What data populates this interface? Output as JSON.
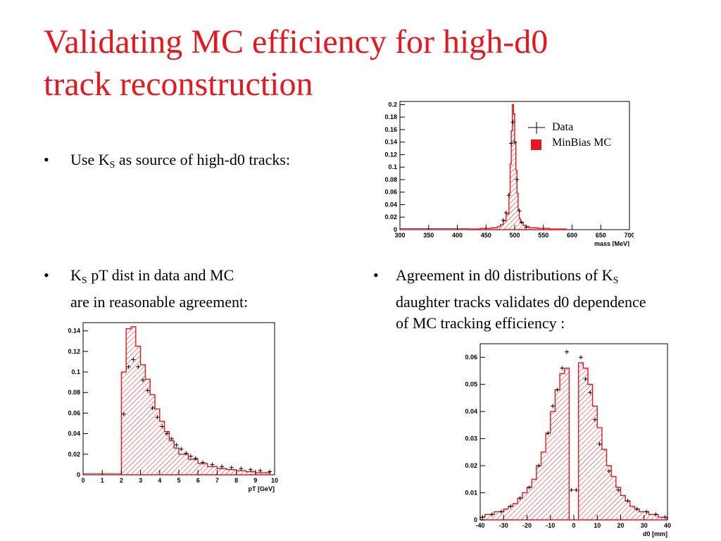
{
  "slide": {
    "title_line1": "Validating MC efficiency for high-d0",
    "title_line2": "track reconstruction",
    "bullet_char": "•",
    "bullet1": {
      "pre": "Use K",
      "sub": "S",
      "post": " as source of high-d0 tracks:"
    },
    "bullet2": {
      "line1_pre": "K",
      "line1_sub": "S",
      "line1_post": " pT dist in data and MC",
      "line2": "are in reasonable agreement:"
    },
    "bullet3": {
      "line1_pre": "Agreement in d0 distributions of K",
      "line1_sub": "S",
      "line2": "daughter tracks validates d0 dependence",
      "line3": "of MC tracking efficiency :"
    }
  },
  "colors": {
    "mc": "#e8161d",
    "data": "#000000",
    "title": "#e8161d"
  },
  "chart_data": [
    {
      "type": "bar",
      "id": "mass",
      "xlabel": "mass [MeV]",
      "xlim": [
        300,
        700
      ],
      "ylim": [
        0,
        0.205
      ],
      "xticks": [
        300,
        350,
        400,
        450,
        500,
        550,
        600,
        650,
        700
      ],
      "xtick_labels": [
        "300",
        "350",
        "400",
        "450",
        "500",
        "550",
        "600",
        "650",
        "700"
      ],
      "yticks": [
        0,
        0.02,
        0.04,
        0.06,
        0.08,
        0.1,
        0.12,
        0.14,
        0.16,
        0.18,
        0.2
      ],
      "ytick_labels": [
        "0",
        "0.02",
        "0.04",
        "0.06",
        "0.08",
        "0.1",
        "0.12",
        "0.14",
        "0.16",
        "0.18",
        "0.2"
      ],
      "legend": {
        "position": "top-right",
        "entries": [
          "Data",
          "MinBias MC"
        ]
      },
      "series": [
        {
          "name": "MinBias MC",
          "style": "hist",
          "x": [
            420,
            430,
            440,
            450,
            460,
            470,
            475,
            480,
            485,
            490,
            492,
            494,
            496,
            498,
            500,
            502,
            504,
            506,
            508,
            510,
            515,
            520,
            525,
            530,
            540,
            550,
            560,
            570,
            580
          ],
          "values": [
            0.001,
            0.001,
            0.002,
            0.002,
            0.003,
            0.005,
            0.008,
            0.014,
            0.025,
            0.058,
            0.105,
            0.158,
            0.2,
            0.185,
            0.14,
            0.095,
            0.058,
            0.032,
            0.018,
            0.011,
            0.007,
            0.005,
            0.003,
            0.003,
            0.002,
            0.002,
            0.001,
            0.001,
            0.001
          ]
        },
        {
          "name": "Data",
          "style": "points",
          "x": [
            480,
            485,
            490,
            494,
            497,
            500,
            504,
            508,
            512,
            520
          ],
          "values": [
            0.015,
            0.027,
            0.055,
            0.138,
            0.172,
            0.14,
            0.08,
            0.03,
            0.012,
            0.004
          ]
        }
      ]
    },
    {
      "type": "bar",
      "id": "pt",
      "xlabel": "pT [GeV]",
      "xlim": [
        0,
        10
      ],
      "ylim": [
        0,
        0.148
      ],
      "xticks": [
        0,
        1,
        2,
        3,
        4,
        5,
        6,
        7,
        8,
        9,
        10
      ],
      "xtick_labels": [
        "0",
        "1",
        "2",
        "3",
        "4",
        "5",
        "6",
        "7",
        "8",
        "9",
        "10"
      ],
      "yticks": [
        0,
        0.02,
        0.04,
        0.06,
        0.08,
        0.1,
        0.12,
        0.14
      ],
      "ytick_labels": [
        "0",
        "0.02",
        "0.04",
        "0.06",
        "0.08",
        "0.1",
        "0.12",
        "0.14"
      ],
      "series": [
        {
          "name": "MinBias MC",
          "style": "hist",
          "x": [
            2.0,
            2.25,
            2.5,
            2.75,
            3.0,
            3.25,
            3.5,
            3.75,
            4.0,
            4.25,
            4.5,
            4.75,
            5.0,
            5.5,
            6.0,
            6.5,
            7.0,
            7.5,
            8.0,
            8.5,
            9.0,
            9.5
          ],
          "values": [
            0.1,
            0.142,
            0.144,
            0.125,
            0.107,
            0.093,
            0.078,
            0.064,
            0.052,
            0.042,
            0.033,
            0.026,
            0.02,
            0.015,
            0.011,
            0.008,
            0.006,
            0.005,
            0.004,
            0.003,
            0.002,
            0.002
          ]
        },
        {
          "name": "Data",
          "style": "points",
          "x": [
            2.125,
            2.375,
            2.625,
            2.875,
            3.125,
            3.375,
            3.625,
            3.875,
            4.125,
            4.375,
            4.625,
            4.875,
            5.125,
            5.375,
            5.625,
            5.875,
            6.25,
            6.75,
            7.25,
            7.75,
            8.25,
            8.75,
            9.25,
            9.75
          ],
          "values": [
            0.059,
            0.105,
            0.112,
            0.105,
            0.092,
            0.082,
            0.065,
            0.056,
            0.047,
            0.04,
            0.035,
            0.029,
            0.025,
            0.021,
            0.018,
            0.016,
            0.012,
            0.01,
            0.008,
            0.007,
            0.006,
            0.005,
            0.004,
            0.003
          ]
        }
      ]
    },
    {
      "type": "bar",
      "id": "d0",
      "xlabel": "d0 [mm]",
      "xlim": [
        -40,
        40
      ],
      "ylim": [
        0,
        0.065
      ],
      "xticks": [
        -40,
        -30,
        -20,
        -10,
        0,
        10,
        20,
        30,
        40
      ],
      "xtick_labels": [
        "-40",
        "-30",
        "-20",
        "-10",
        "0",
        "10",
        "20",
        "30",
        "40"
      ],
      "yticks": [
        0,
        0.01,
        0.02,
        0.03,
        0.04,
        0.05,
        0.06
      ],
      "ytick_labels": [
        "0",
        "0.01",
        "0.02",
        "0.03",
        "0.04",
        "0.05",
        "0.06"
      ],
      "series": [
        {
          "name": "MinBias MC",
          "style": "hist",
          "x": [
            -40,
            -38,
            -36,
            -34,
            -32,
            -30,
            -28,
            -26,
            -24,
            -22,
            -20,
            -18,
            -16,
            -14,
            -12,
            -10,
            -8,
            -6,
            -4,
            -2,
            0,
            2,
            4,
            6,
            8,
            10,
            12,
            14,
            16,
            18,
            20,
            22,
            24,
            26,
            28,
            30,
            32,
            34,
            36,
            38
          ],
          "values": [
            0.001,
            0.002,
            0.002,
            0.003,
            0.003,
            0.004,
            0.005,
            0.006,
            0.008,
            0.01,
            0.012,
            0.015,
            0.02,
            0.025,
            0.032,
            0.04,
            0.048,
            0.054,
            0.056,
            0.0,
            0.0,
            0.058,
            0.056,
            0.05,
            0.042,
            0.034,
            0.026,
            0.02,
            0.016,
            0.012,
            0.009,
            0.007,
            0.005,
            0.004,
            0.003,
            0.003,
            0.002,
            0.002,
            0.001,
            0.001
          ]
        },
        {
          "name": "Data",
          "style": "points",
          "x": [
            -39,
            -35,
            -31,
            -27,
            -23,
            -19,
            -15,
            -11,
            -9,
            -7,
            -5,
            -3,
            -1,
            1,
            3,
            5,
            7,
            9,
            11,
            15,
            19,
            23,
            27,
            31,
            35,
            39
          ],
          "values": [
            0.001,
            0.002,
            0.003,
            0.005,
            0.008,
            0.012,
            0.02,
            0.032,
            0.042,
            0.048,
            0.056,
            0.062,
            0.011,
            0.011,
            0.06,
            0.052,
            0.047,
            0.037,
            0.028,
            0.018,
            0.011,
            0.007,
            0.004,
            0.003,
            0.002,
            0.001
          ]
        }
      ]
    }
  ]
}
